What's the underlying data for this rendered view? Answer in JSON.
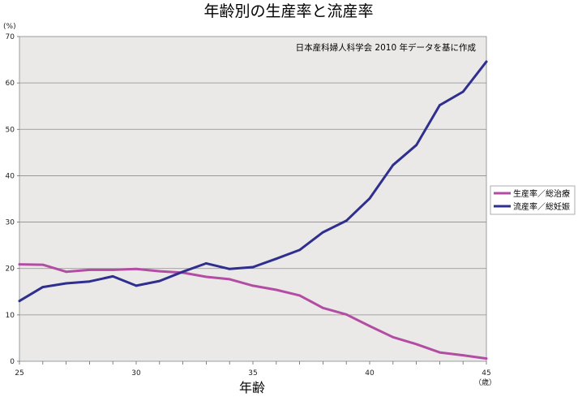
{
  "chart_data": {
    "type": "line",
    "title": "年齢別の生産率と流産率",
    "xlabel": "年齢",
    "x_unit": "（歳）",
    "y_unit": "(%)",
    "annotation": "日本産科婦人科学会 2010 年データを基に作成",
    "xlim": [
      25,
      45
    ],
    "ylim": [
      0,
      70
    ],
    "x_ticks": [
      25,
      30,
      35,
      40,
      45
    ],
    "y_ticks": [
      0,
      10,
      20,
      30,
      40,
      50,
      60,
      70
    ],
    "grid": true,
    "legend_position": "right",
    "plot_background": "#ebe9e8",
    "x": [
      25,
      26,
      27,
      28,
      29,
      30,
      31,
      32,
      33,
      34,
      35,
      36,
      37,
      38,
      39,
      40,
      41,
      42,
      43,
      44,
      45
    ],
    "series": [
      {
        "name": "生産率／総治療",
        "color": "#b34da3",
        "values": [
          20.9,
          20.8,
          19.3,
          19.7,
          19.7,
          19.9,
          19.4,
          19.1,
          18.2,
          17.7,
          16.3,
          15.4,
          14.2,
          11.5,
          10.1,
          7.6,
          5.2,
          3.7,
          1.9,
          1.3,
          0.6
        ]
      },
      {
        "name": "流産率／総妊娠",
        "color": "#2e2f8e",
        "values": [
          13.0,
          16.0,
          16.8,
          17.2,
          18.3,
          16.3,
          17.3,
          19.3,
          21.1,
          19.9,
          20.3,
          22.1,
          24.0,
          27.8,
          30.3,
          35.1,
          42.3,
          46.6,
          55.2,
          58.1,
          64.6
        ]
      }
    ]
  }
}
